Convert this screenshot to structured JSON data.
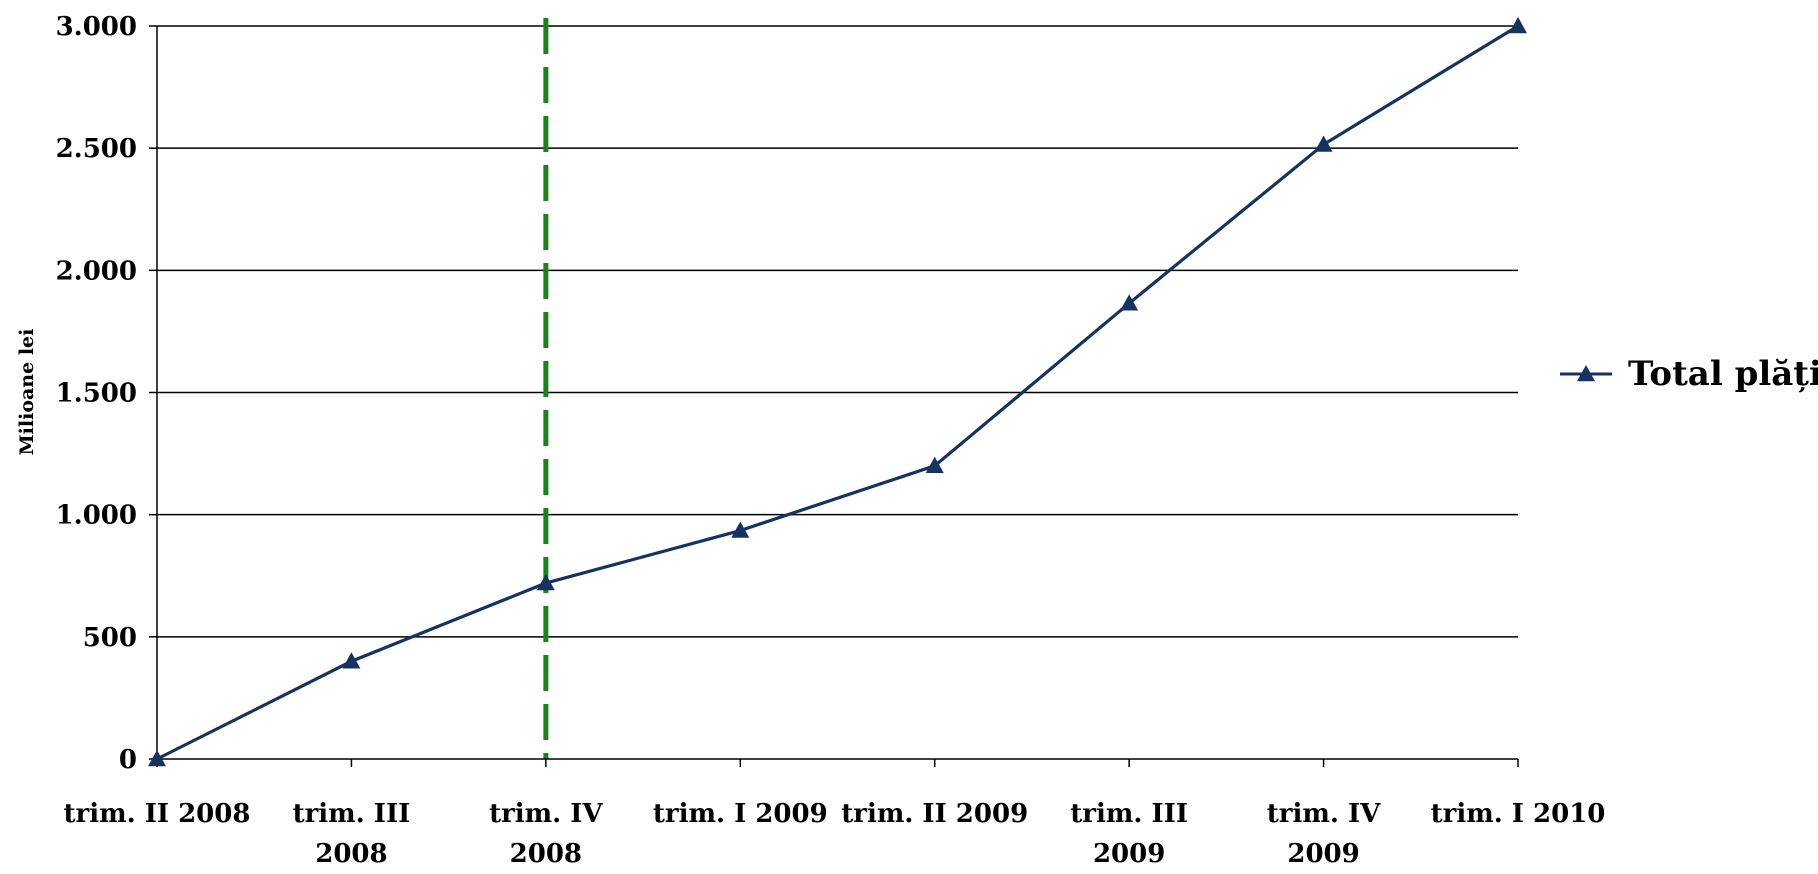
{
  "chart_data": {
    "type": "line",
    "title": "",
    "xlabel": "",
    "ylabel": "Milioane lei",
    "categories": [
      [
        "trim. II 2008"
      ],
      [
        "trim. III",
        "2008"
      ],
      [
        "trim. IV",
        "2008"
      ],
      [
        "trim. I 2009"
      ],
      [
        "trim. II 2009"
      ],
      [
        "trim. III",
        "2009"
      ],
      [
        "trim. IV",
        "2009"
      ],
      [
        "trim. I 2010"
      ]
    ],
    "series": [
      {
        "name": "Total plăți",
        "values": [
          0,
          400,
          720,
          935,
          1200,
          1865,
          2515,
          3000
        ],
        "color": "#15335e",
        "marker": "triangle"
      }
    ],
    "ylim": [
      0,
      3000
    ],
    "yticks": [
      0,
      500,
      1000,
      1500,
      2000,
      2500,
      3000
    ],
    "ytick_labels": [
      "0",
      "500",
      "1.000",
      "1.500",
      "2.000",
      "2.500",
      "3.000"
    ],
    "grid": true,
    "legend": "right",
    "reference_line": {
      "category_index": 2,
      "style": "dashed",
      "color": "#178417"
    }
  }
}
